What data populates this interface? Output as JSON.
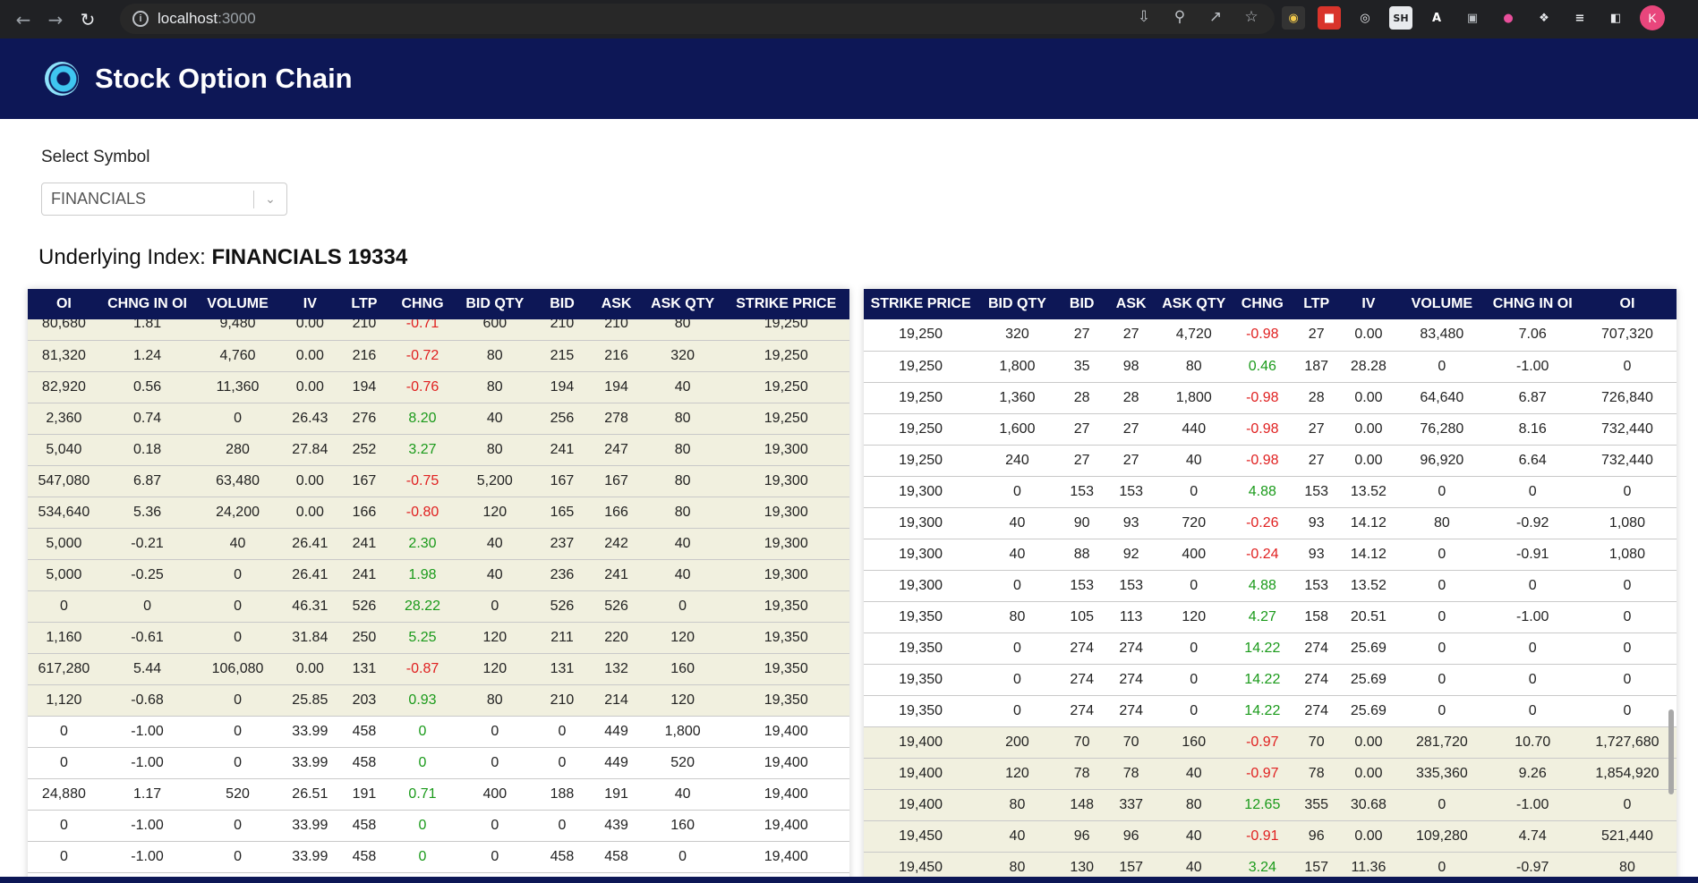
{
  "browser": {
    "url_host": "localhost",
    "url_port": ":3000",
    "avatar_letter": "K",
    "ext_sh": "SH",
    "ext_a": "A"
  },
  "app": {
    "title": "Stock Option Chain"
  },
  "symbol_select": {
    "label": "Select Symbol",
    "value": "FINANCIALS"
  },
  "underlying": {
    "label": "Underlying Index:",
    "value": "FINANCIALS 19334"
  },
  "calls": {
    "headers": [
      "OI",
      "CHNG IN OI",
      "VOLUME",
      "IV",
      "LTP",
      "CHNG",
      "BID QTY",
      "BID",
      "ASK",
      "ASK QTY",
      "STRIKE PRICE"
    ],
    "rows": [
      [
        "80,680",
        "1.81",
        "9,480",
        "0.00",
        "210",
        "-0.71",
        "600",
        "210",
        "210",
        "80",
        "19,250"
      ],
      [
        "81,320",
        "1.24",
        "4,760",
        "0.00",
        "216",
        "-0.72",
        "80",
        "215",
        "216",
        "320",
        "19,250"
      ],
      [
        "82,920",
        "0.56",
        "11,360",
        "0.00",
        "194",
        "-0.76",
        "80",
        "194",
        "194",
        "40",
        "19,250"
      ],
      [
        "2,360",
        "0.74",
        "0",
        "26.43",
        "276",
        "8.20",
        "40",
        "256",
        "278",
        "80",
        "19,250"
      ],
      [
        "5,040",
        "0.18",
        "280",
        "27.84",
        "252",
        "3.27",
        "80",
        "241",
        "247",
        "80",
        "19,300"
      ],
      [
        "547,080",
        "6.87",
        "63,480",
        "0.00",
        "167",
        "-0.75",
        "5,200",
        "167",
        "167",
        "80",
        "19,300"
      ],
      [
        "534,640",
        "5.36",
        "24,200",
        "0.00",
        "166",
        "-0.80",
        "120",
        "165",
        "166",
        "80",
        "19,300"
      ],
      [
        "5,000",
        "-0.21",
        "40",
        "26.41",
        "241",
        "2.30",
        "40",
        "237",
        "242",
        "40",
        "19,300"
      ],
      [
        "5,000",
        "-0.25",
        "0",
        "26.41",
        "241",
        "1.98",
        "40",
        "236",
        "241",
        "40",
        "19,300"
      ],
      [
        "0",
        "0",
        "0",
        "46.31",
        "526",
        "28.22",
        "0",
        "526",
        "526",
        "0",
        "19,350"
      ],
      [
        "1,160",
        "-0.61",
        "0",
        "31.84",
        "250",
        "5.25",
        "120",
        "211",
        "220",
        "120",
        "19,350"
      ],
      [
        "617,280",
        "5.44",
        "106,080",
        "0.00",
        "131",
        "-0.87",
        "120",
        "131",
        "132",
        "160",
        "19,350"
      ],
      [
        "1,120",
        "-0.68",
        "0",
        "25.85",
        "203",
        "0.93",
        "80",
        "210",
        "214",
        "120",
        "19,350"
      ],
      [
        "0",
        "-1.00",
        "0",
        "33.99",
        "458",
        "0",
        "0",
        "0",
        "449",
        "1,800",
        "19,400"
      ],
      [
        "0",
        "-1.00",
        "0",
        "33.99",
        "458",
        "0",
        "0",
        "0",
        "449",
        "520",
        "19,400"
      ],
      [
        "24,880",
        "1.17",
        "520",
        "26.51",
        "191",
        "0.71",
        "400",
        "188",
        "191",
        "40",
        "19,400"
      ],
      [
        "0",
        "-1.00",
        "0",
        "33.99",
        "458",
        "0",
        "0",
        "0",
        "439",
        "160",
        "19,400"
      ],
      [
        "0",
        "-1.00",
        "0",
        "33.99",
        "458",
        "0",
        "0",
        "458",
        "458",
        "0",
        "19,400"
      ]
    ],
    "itm_rows": 13
  },
  "puts": {
    "headers": [
      "STRIKE PRICE",
      "BID QTY",
      "BID",
      "ASK",
      "ASK QTY",
      "CHNG",
      "LTP",
      "IV",
      "VOLUME",
      "CHNG IN OI",
      "OI"
    ],
    "rows": [
      [
        "19,250",
        "320",
        "27",
        "27",
        "4,720",
        "-0.98",
        "27",
        "0.00",
        "83,480",
        "7.06",
        "707,320"
      ],
      [
        "19,250",
        "1,800",
        "35",
        "98",
        "80",
        "0.46",
        "187",
        "28.28",
        "0",
        "-1.00",
        "0"
      ],
      [
        "19,250",
        "1,360",
        "28",
        "28",
        "1,800",
        "-0.98",
        "28",
        "0.00",
        "64,640",
        "6.87",
        "726,840"
      ],
      [
        "19,250",
        "1,600",
        "27",
        "27",
        "440",
        "-0.98",
        "27",
        "0.00",
        "76,280",
        "8.16",
        "732,440"
      ],
      [
        "19,250",
        "240",
        "27",
        "27",
        "40",
        "-0.98",
        "27",
        "0.00",
        "96,920",
        "6.64",
        "732,440"
      ],
      [
        "19,300",
        "0",
        "153",
        "153",
        "0",
        "4.88",
        "153",
        "13.52",
        "0",
        "0",
        "0"
      ],
      [
        "19,300",
        "40",
        "90",
        "93",
        "720",
        "-0.26",
        "93",
        "14.12",
        "80",
        "-0.92",
        "1,080"
      ],
      [
        "19,300",
        "40",
        "88",
        "92",
        "400",
        "-0.24",
        "93",
        "14.12",
        "0",
        "-0.91",
        "1,080"
      ],
      [
        "19,300",
        "0",
        "153",
        "153",
        "0",
        "4.88",
        "153",
        "13.52",
        "0",
        "0",
        "0"
      ],
      [
        "19,350",
        "80",
        "105",
        "113",
        "120",
        "4.27",
        "158",
        "20.51",
        "0",
        "-1.00",
        "0"
      ],
      [
        "19,350",
        "0",
        "274",
        "274",
        "0",
        "14.22",
        "274",
        "25.69",
        "0",
        "0",
        "0"
      ],
      [
        "19,350",
        "0",
        "274",
        "274",
        "0",
        "14.22",
        "274",
        "25.69",
        "0",
        "0",
        "0"
      ],
      [
        "19,350",
        "0",
        "274",
        "274",
        "0",
        "14.22",
        "274",
        "25.69",
        "0",
        "0",
        "0"
      ],
      [
        "19,400",
        "200",
        "70",
        "70",
        "160",
        "-0.97",
        "70",
        "0.00",
        "281,720",
        "10.70",
        "1,727,680"
      ],
      [
        "19,400",
        "120",
        "78",
        "78",
        "40",
        "-0.97",
        "78",
        "0.00",
        "335,360",
        "9.26",
        "1,854,920"
      ],
      [
        "19,400",
        "80",
        "148",
        "337",
        "80",
        "12.65",
        "355",
        "30.68",
        "0",
        "-1.00",
        "0"
      ],
      [
        "19,450",
        "40",
        "96",
        "96",
        "40",
        "-0.91",
        "96",
        "0.00",
        "109,280",
        "4.74",
        "521,440"
      ],
      [
        "19,450",
        "80",
        "130",
        "157",
        "40",
        "3.24",
        "157",
        "11.36",
        "0",
        "-0.97",
        "80"
      ]
    ],
    "itm_start": 13
  },
  "colors": {
    "header_bg": "#0d1756",
    "itm_bg": "#f1f0df",
    "positive": "#1a9a1a",
    "negative": "#e02020"
  }
}
